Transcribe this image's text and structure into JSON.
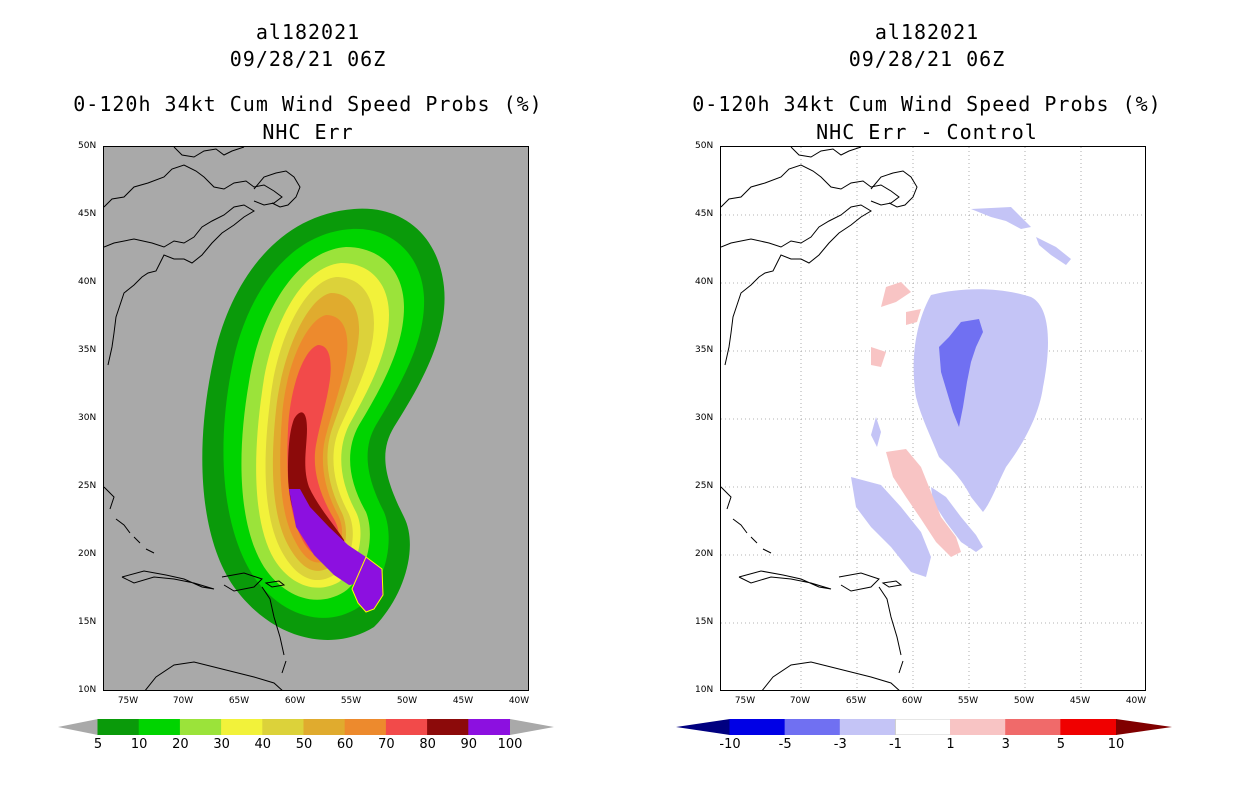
{
  "left_panel": {
    "storm_id": "al182021",
    "datetime": "09/28/21 06Z",
    "product": "0-120h 34kt Cum Wind Speed Probs (%)",
    "subtitle": "NHC Err",
    "background_color": "#a9a9a9",
    "contour_colors": [
      "#0a9a0a",
      "#00d400",
      "#9be33a",
      "#f2f23a",
      "#dcd23a",
      "#e0ab2e",
      "#ed8a2d",
      "#f24a4a",
      "#8c0a0a",
      "#8c10e0"
    ],
    "colorbar_labels": [
      "5",
      "10",
      "20",
      "30",
      "40",
      "50",
      "60",
      "70",
      "80",
      "90",
      "100"
    ]
  },
  "right_panel": {
    "storm_id": "al182021",
    "datetime": "09/28/21 06Z",
    "product": "0-120h 34kt Cum Wind Speed Probs (%)",
    "subtitle": "NHC Err - Control",
    "background_color": "#ffffff",
    "contour_colors": [
      "#0000e6",
      "#7070f2",
      "#c4c4f6",
      "#ffffff",
      "#f8c4c4",
      "#f06a6a",
      "#f00000"
    ],
    "end_colors": [
      "#000080",
      "#800000"
    ],
    "colorbar_labels": [
      "-10",
      "-5",
      "-3",
      "-1",
      "1",
      "3",
      "5",
      "10"
    ]
  },
  "axes": {
    "lat_labels": [
      "50N",
      "45N",
      "40N",
      "35N",
      "30N",
      "25N",
      "20N",
      "15N",
      "10N"
    ],
    "lon_labels": [
      "75W",
      "70W",
      "65W",
      "60W",
      "55W",
      "50W",
      "45W",
      "40W"
    ]
  }
}
